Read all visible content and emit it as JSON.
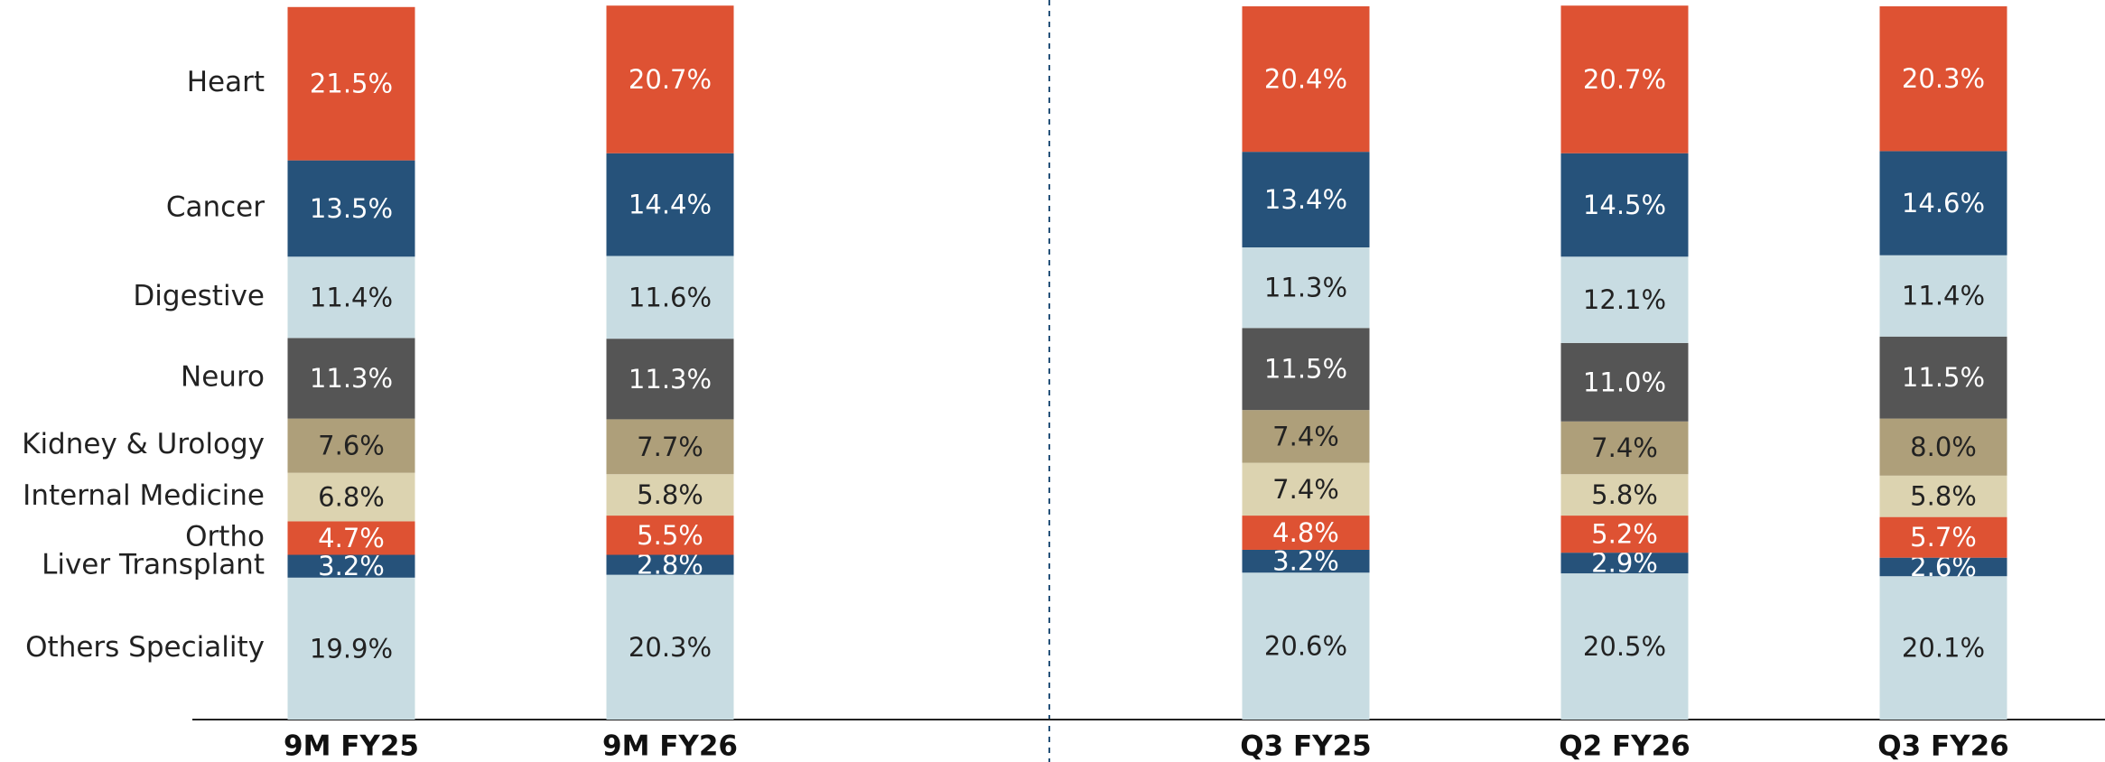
{
  "chart_data": {
    "type": "stacked_bar",
    "categories": [
      "9M FY25",
      "9M FY26",
      "Q3 FY25",
      "Q2 FY26",
      "Q3 FY26"
    ],
    "ylim": [
      0,
      100
    ],
    "series": [
      {
        "name": "Others Speciality",
        "color": "#c8dce2",
        "values": [
          19.9,
          20.3,
          20.6,
          20.5,
          20.1
        ],
        "value_labels": [
          "19.9%",
          "20.3%",
          "20.6%",
          "20.5%",
          "20.1%"
        ]
      },
      {
        "name": "Liver Transplant",
        "color": "#26527a",
        "values": [
          3.2,
          2.8,
          3.2,
          2.9,
          2.6
        ],
        "value_labels": [
          "3.2%",
          "2.8%",
          "3.2%",
          "2.9%",
          "2.6%"
        ]
      },
      {
        "name": "Ortho",
        "color": "#de5233",
        "values": [
          4.7,
          5.5,
          4.8,
          5.2,
          5.7
        ],
        "value_labels": [
          "4.7%",
          "5.5%",
          "4.8%",
          "5.2%",
          "5.7%"
        ]
      },
      {
        "name": "Internal Medicine",
        "color": "#dcd3b0",
        "values": [
          6.8,
          5.8,
          7.4,
          5.8,
          5.8
        ],
        "value_labels": [
          "6.8%",
          "5.8%",
          "7.4%",
          "5.8%",
          "5.8%"
        ]
      },
      {
        "name": "Kidney & Urology",
        "color": "#ae9f7a",
        "values": [
          7.6,
          7.7,
          7.4,
          7.4,
          8.0
        ],
        "value_labels": [
          "7.6%",
          "7.7%",
          "7.4%",
          "7.4%",
          "8.0%"
        ]
      },
      {
        "name": "Neuro",
        "color": "#555555",
        "values": [
          11.3,
          11.3,
          11.5,
          11.0,
          11.5
        ],
        "value_labels": [
          "11.3%",
          "11.3%",
          "11.5%",
          "11.0%",
          "11.5%"
        ]
      },
      {
        "name": "Digestive",
        "color": "#c8dce2",
        "values": [
          11.4,
          11.6,
          11.3,
          12.1,
          11.4
        ],
        "value_labels": [
          "11.4%",
          "11.6%",
          "11.3%",
          "12.1%",
          "11.4%"
        ]
      },
      {
        "name": "Cancer",
        "color": "#26527a",
        "values": [
          13.5,
          14.4,
          13.4,
          14.5,
          14.6
        ],
        "value_labels": [
          "13.5%",
          "14.4%",
          "13.4%",
          "14.5%",
          "14.6%"
        ]
      },
      {
        "name": "Heart",
        "color": "#de5233",
        "values": [
          21.5,
          20.7,
          20.4,
          20.7,
          20.3
        ],
        "value_labels": [
          "21.5%",
          "20.7%",
          "20.4%",
          "20.7%",
          "20.3%"
        ]
      }
    ]
  }
}
